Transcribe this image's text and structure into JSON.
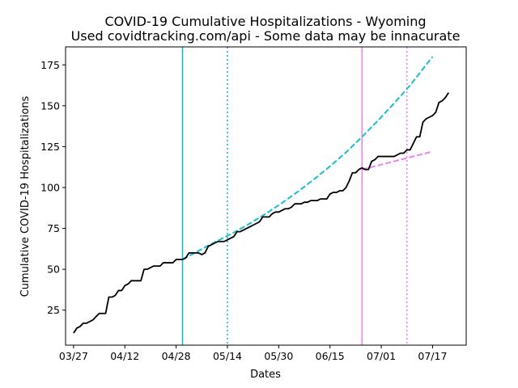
{
  "chart_data": {
    "type": "line",
    "title_line1": "COVID-19 Cumulative Hospitalizations - Wyoming",
    "title_line2": "Used covidtracking.com/api - Some data may be innacurate",
    "xlabel": "Dates",
    "ylabel": "Cumulative COVID-19 Hospitalizations",
    "x_start_date": "2020-03-27",
    "x_tick_labels": [
      "03/27",
      "04/12",
      "04/28",
      "05/14",
      "05/30",
      "06/15",
      "07/01",
      "07/17"
    ],
    "yticks": [
      25,
      50,
      75,
      100,
      125,
      150,
      175
    ],
    "xlim_days": [
      -2.5,
      122.5
    ],
    "ylim": [
      3.6,
      186
    ],
    "grid": false,
    "colors": {
      "actual": "#000000",
      "fit_early": "#17becf",
      "fit_late": "#ee82ee"
    },
    "series": [
      {
        "style": "solid",
        "color_key": "actual",
        "points": [
          [
            0,
            11
          ],
          [
            1,
            14
          ],
          [
            2,
            15
          ],
          [
            3,
            17
          ],
          [
            4,
            17
          ],
          [
            5,
            18
          ],
          [
            6,
            19
          ],
          [
            7,
            21
          ],
          [
            8,
            23
          ],
          [
            9,
            23
          ],
          [
            10,
            23
          ],
          [
            11,
            33
          ],
          [
            12,
            33
          ],
          [
            13,
            34
          ],
          [
            14,
            37
          ],
          [
            15,
            37
          ],
          [
            16,
            40
          ],
          [
            17,
            41
          ],
          [
            18,
            43
          ],
          [
            19,
            43
          ],
          [
            20,
            43
          ],
          [
            21,
            43
          ],
          [
            22,
            50
          ],
          [
            23,
            50
          ],
          [
            24,
            51
          ],
          [
            25,
            52
          ],
          [
            26,
            52
          ],
          [
            27,
            52
          ],
          [
            28,
            54
          ],
          [
            29,
            54
          ],
          [
            30,
            54
          ],
          [
            31,
            54
          ],
          [
            32,
            56
          ],
          [
            33,
            56
          ],
          [
            34,
            56
          ],
          [
            35,
            57
          ],
          [
            36,
            60
          ],
          [
            37,
            60
          ],
          [
            38,
            60
          ],
          [
            39,
            60
          ],
          [
            40,
            59
          ],
          [
            41,
            60
          ],
          [
            42,
            64
          ],
          [
            43,
            65
          ],
          [
            44,
            66
          ],
          [
            45,
            67
          ],
          [
            46,
            67
          ],
          [
            47,
            67
          ],
          [
            48,
            68
          ],
          [
            49,
            69
          ],
          [
            50,
            70
          ],
          [
            51,
            73
          ],
          [
            52,
            73
          ],
          [
            53,
            74
          ],
          [
            54,
            75
          ],
          [
            55,
            76
          ],
          [
            56,
            77
          ],
          [
            57,
            78
          ],
          [
            58,
            79
          ],
          [
            59,
            82
          ],
          [
            60,
            82
          ],
          [
            61,
            82
          ],
          [
            62,
            84
          ],
          [
            63,
            85
          ],
          [
            64,
            85
          ],
          [
            65,
            86
          ],
          [
            66,
            87
          ],
          [
            67,
            87
          ],
          [
            68,
            88
          ],
          [
            69,
            90
          ],
          [
            70,
            90
          ],
          [
            71,
            90
          ],
          [
            72,
            91
          ],
          [
            73,
            91
          ],
          [
            74,
            92
          ],
          [
            75,
            92
          ],
          [
            76,
            92
          ],
          [
            77,
            93
          ],
          [
            78,
            93
          ],
          [
            79,
            93
          ],
          [
            80,
            96
          ],
          [
            81,
            97
          ],
          [
            82,
            97
          ],
          [
            83,
            98
          ],
          [
            84,
            98
          ],
          [
            85,
            100
          ],
          [
            86,
            104
          ],
          [
            87,
            109
          ],
          [
            88,
            109
          ],
          [
            89,
            111
          ],
          [
            90,
            112
          ],
          [
            91,
            111
          ],
          [
            92,
            111
          ],
          [
            93,
            116
          ],
          [
            94,
            117
          ],
          [
            95,
            119
          ],
          [
            96,
            119
          ],
          [
            97,
            119
          ],
          [
            98,
            119
          ],
          [
            99,
            119
          ],
          [
            100,
            119
          ],
          [
            101,
            120
          ],
          [
            102,
            121
          ],
          [
            103,
            121
          ],
          [
            104,
            123
          ],
          [
            105,
            123
          ],
          [
            106,
            127
          ],
          [
            107,
            131
          ],
          [
            108,
            131
          ],
          [
            109,
            140
          ],
          [
            110,
            142
          ],
          [
            111,
            143
          ],
          [
            112,
            144
          ],
          [
            113,
            146
          ],
          [
            114,
            152
          ],
          [
            115,
            153
          ],
          [
            116,
            155
          ],
          [
            117,
            158
          ]
        ]
      },
      {
        "style": "dashed",
        "color_key": "fit_early",
        "points": [
          [
            34,
            56
          ],
          [
            38,
            60.2
          ],
          [
            42,
            64.5
          ],
          [
            46,
            68.5
          ],
          [
            50,
            72.5
          ],
          [
            55,
            78
          ],
          [
            60,
            84
          ],
          [
            65,
            90.5
          ],
          [
            70,
            97.5
          ],
          [
            75,
            105
          ],
          [
            80,
            113
          ],
          [
            85,
            121.5
          ],
          [
            90,
            131
          ],
          [
            95,
            141
          ],
          [
            100,
            151.5
          ],
          [
            105,
            162.5
          ],
          [
            110,
            175
          ],
          [
            112,
            180
          ]
        ]
      },
      {
        "style": "dashed",
        "color_key": "fit_late",
        "points": [
          [
            90,
            111
          ],
          [
            95,
            113.5
          ],
          [
            100,
            116
          ],
          [
            105,
            118.5
          ],
          [
            110,
            121
          ],
          [
            112,
            122
          ]
        ]
      }
    ],
    "vertical_lines": [
      {
        "x": 34,
        "style": "solid",
        "color_key": "fit_early"
      },
      {
        "x": 48,
        "style": "dotted",
        "color_key": "fit_early"
      },
      {
        "x": 90,
        "style": "solid",
        "color_key": "fit_late"
      },
      {
        "x": 104,
        "style": "dotted",
        "color_key": "fit_late"
      }
    ]
  }
}
